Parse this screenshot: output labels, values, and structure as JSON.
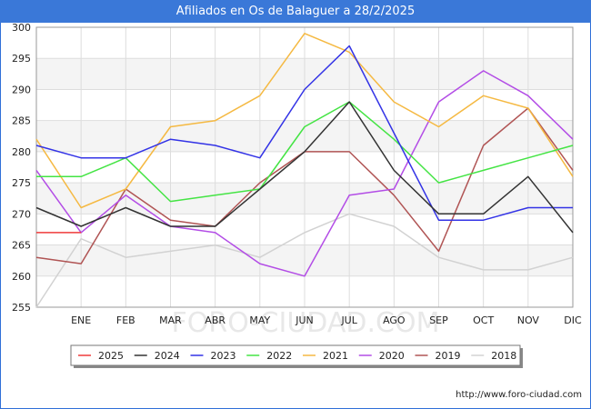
{
  "title": "Afiliados en Os de Balaguer a 28/2/2025",
  "footer": "http://www.foro-ciudad.com",
  "watermark": "FORO-CIUDAD.COM",
  "chart_data": {
    "type": "line",
    "title": "Afiliados en Os de Balaguer a 28/2/2025",
    "categories": [
      "ENE",
      "FEB",
      "MAR",
      "ABR",
      "MAY",
      "JUN",
      "JUL",
      "AGO",
      "SEP",
      "OCT",
      "NOV",
      "DIC"
    ],
    "ylim": [
      255,
      300
    ],
    "yticks": [
      255,
      260,
      265,
      270,
      275,
      280,
      285,
      290,
      295,
      300
    ],
    "grid": true,
    "legend_position": "bottom",
    "series": [
      {
        "name": "2025",
        "color": "#ef3a3a",
        "start": 267,
        "values": [
          267,
          null,
          null,
          null,
          null,
          null,
          null,
          null,
          null,
          null,
          null,
          null
        ]
      },
      {
        "name": "2024",
        "color": "#333333",
        "start": 271,
        "values": [
          268,
          271,
          268,
          268,
          274,
          280,
          288,
          277,
          270,
          270,
          276,
          267
        ]
      },
      {
        "name": "2023",
        "color": "#3333e6",
        "start": 281,
        "values": [
          279,
          279,
          282,
          281,
          279,
          290,
          297,
          283,
          269,
          269,
          271,
          271
        ]
      },
      {
        "name": "2022",
        "color": "#44e444",
        "start": 276,
        "values": [
          276,
          279,
          272,
          273,
          274,
          284,
          288,
          282,
          275,
          277,
          279,
          281
        ]
      },
      {
        "name": "2021",
        "color": "#f5b942",
        "start": 282,
        "values": [
          271,
          274,
          284,
          285,
          289,
          299,
          296,
          288,
          284,
          289,
          287,
          276
        ]
      },
      {
        "name": "2020",
        "color": "#b34de6",
        "start": 277,
        "values": [
          267,
          273,
          268,
          267,
          262,
          260,
          273,
          274,
          288,
          293,
          289,
          282
        ]
      },
      {
        "name": "2019",
        "color": "#b05454",
        "start": 263,
        "values": [
          262,
          274,
          269,
          268,
          275,
          280,
          280,
          273,
          264,
          281,
          287,
          277
        ]
      },
      {
        "name": "2018",
        "color": "#d2d2d2",
        "start": 255,
        "values": [
          266,
          263,
          264,
          265,
          263,
          267,
          270,
          268,
          263,
          261,
          261,
          263
        ]
      }
    ]
  }
}
